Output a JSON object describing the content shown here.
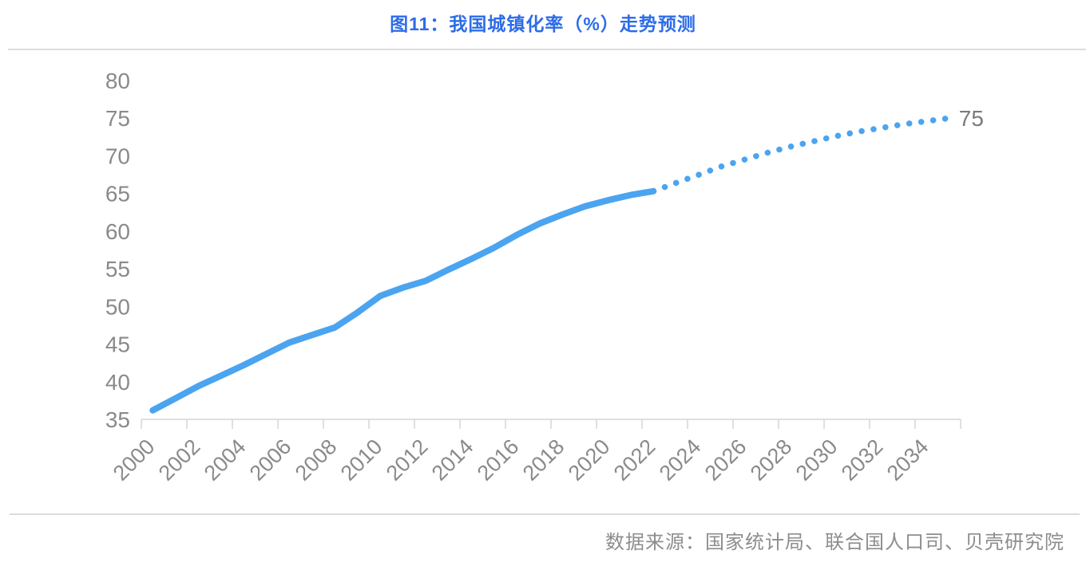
{
  "header": {
    "title": "图11：我国城镇化率（%）走势预测"
  },
  "footer": {
    "source": "数据来源：国家统计局、联合国人口司、贝壳研究院"
  },
  "colors": {
    "title_text": "#2d6ce8",
    "line": "#4ba4f0",
    "axis_text": "#8a8a8a",
    "axis_line": "#d6d6d6",
    "divider": "#dcdcdc",
    "source_text": "#8d8d8d",
    "end_label_text": "#7a7a7a"
  },
  "chart_data": {
    "type": "line",
    "title": "图11：我国城镇化率（%）走势预测",
    "xlabel": "",
    "ylabel": "",
    "xlim": [
      2000,
      2036
    ],
    "ylim": [
      35,
      80
    ],
    "yticks": [
      35,
      40,
      45,
      50,
      55,
      60,
      65,
      70,
      75,
      80
    ],
    "xticks": [
      2000,
      2002,
      2004,
      2006,
      2008,
      2010,
      2012,
      2014,
      2016,
      2018,
      2020,
      2022,
      2024,
      2026,
      2028,
      2030,
      2032,
      2034
    ],
    "grid": false,
    "legend": false,
    "end_label": "75",
    "series": [
      {
        "name": "historical",
        "style": "solid",
        "years": [
          2000,
          2001,
          2002,
          2003,
          2004,
          2005,
          2006,
          2007,
          2008,
          2009,
          2010,
          2011,
          2012,
          2013,
          2014,
          2015,
          2016,
          2017,
          2018,
          2019,
          2020,
          2021,
          2022
        ],
        "values": [
          36.2,
          37.8,
          39.4,
          40.8,
          42.2,
          43.7,
          45.2,
          46.2,
          47.2,
          49.2,
          51.4,
          52.5,
          53.4,
          54.9,
          56.3,
          57.8,
          59.5,
          61.0,
          62.2,
          63.3,
          64.1,
          64.8,
          65.3
        ]
      },
      {
        "name": "forecast",
        "style": "dotted",
        "years": [
          2022,
          2023,
          2024,
          2025,
          2026,
          2027,
          2028,
          2029,
          2030,
          2031,
          2032,
          2033,
          2034,
          2035
        ],
        "values": [
          65.3,
          66.4,
          67.5,
          68.6,
          69.5,
          70.4,
          71.2,
          71.9,
          72.6,
          73.2,
          73.7,
          74.2,
          74.6,
          75.0
        ]
      }
    ]
  }
}
